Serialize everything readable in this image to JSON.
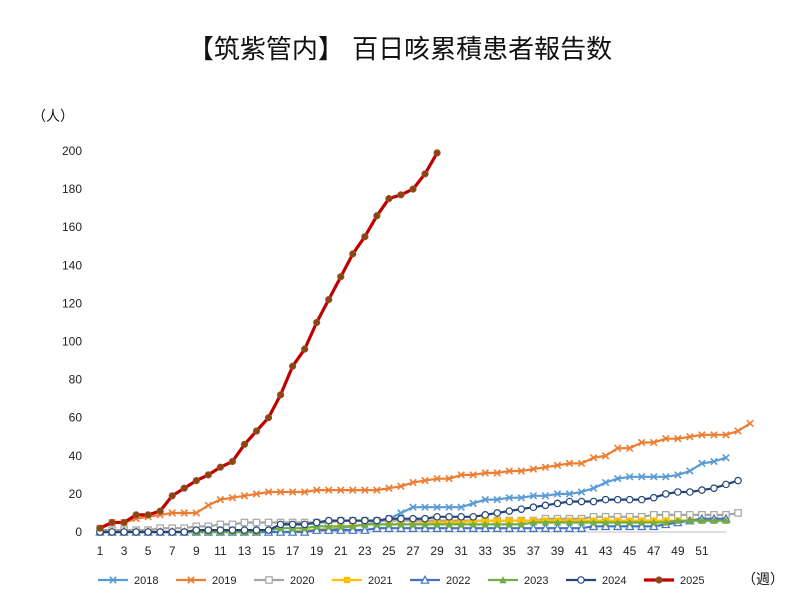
{
  "chart_data": {
    "type": "line",
    "title": "【筑紫管内】 百日咳累積患者報告数",
    "ylabel": "（人）",
    "xlabel": "（週）",
    "ylim": [
      0,
      200
    ],
    "yticks": [
      0,
      20,
      40,
      60,
      80,
      100,
      120,
      140,
      160,
      180,
      200
    ],
    "xlim": [
      1,
      53
    ],
    "xticks": [
      1,
      3,
      5,
      7,
      9,
      11,
      13,
      15,
      17,
      19,
      21,
      23,
      25,
      27,
      29,
      31,
      33,
      35,
      37,
      39,
      41,
      43,
      45,
      47,
      49,
      51
    ],
    "legend_position": "bottom",
    "series": [
      {
        "name": "2018",
        "color": "#5b9bd5",
        "marker": "x",
        "values": [
          0,
          0,
          0,
          0,
          0,
          0,
          0,
          0,
          0,
          0,
          0,
          0,
          0,
          0,
          0,
          0,
          0,
          1,
          1,
          2,
          2,
          3,
          4,
          5,
          7,
          10,
          13,
          13,
          13,
          13,
          13,
          15,
          17,
          17,
          18,
          18,
          19,
          19,
          20,
          20,
          21,
          23,
          26,
          28,
          29,
          29,
          29,
          29,
          30,
          32,
          36,
          37,
          39
        ]
      },
      {
        "name": "2019",
        "color": "#ed7d31",
        "marker": "x",
        "values": [
          2,
          5,
          5,
          7,
          8,
          9,
          10,
          10,
          10,
          14,
          17,
          18,
          19,
          20,
          21,
          21,
          21,
          21,
          22,
          22,
          22,
          22,
          22,
          22,
          23,
          24,
          26,
          27,
          28,
          28,
          30,
          30,
          31,
          31,
          32,
          32,
          33,
          34,
          35,
          36,
          36,
          39,
          40,
          44,
          44,
          47,
          47,
          49,
          49,
          50,
          51,
          51,
          51,
          53,
          57
        ]
      },
      {
        "name": "2020",
        "color": "#a5a5a5",
        "marker": "square-open",
        "values": [
          1,
          1,
          1,
          1,
          1,
          2,
          2,
          2,
          3,
          3,
          4,
          4,
          5,
          5,
          5,
          5,
          5,
          5,
          5,
          5,
          6,
          6,
          6,
          6,
          6,
          6,
          6,
          6,
          6,
          6,
          6,
          6,
          6,
          6,
          6,
          6,
          6,
          7,
          7,
          7,
          7,
          8,
          8,
          8,
          8,
          8,
          9,
          9,
          9,
          9,
          9,
          9,
          9,
          10
        ]
      },
      {
        "name": "2021",
        "color": "#ffc000",
        "marker": "square",
        "values": [
          0,
          0,
          0,
          0,
          0,
          0,
          0,
          0,
          0,
          0,
          0,
          0,
          0,
          0,
          0,
          0,
          0,
          1,
          1,
          2,
          3,
          3,
          4,
          4,
          4,
          4,
          4,
          5,
          5,
          5,
          5,
          6,
          6,
          6,
          6,
          6,
          6,
          6,
          6,
          6,
          6,
          6,
          6,
          6,
          6,
          6,
          6,
          6,
          6,
          6,
          6,
          6,
          6
        ]
      },
      {
        "name": "2022",
        "color": "#4472c4",
        "marker": "triangle-open",
        "values": [
          0,
          0,
          0,
          0,
          0,
          0,
          0,
          0,
          0,
          0,
          0,
          0,
          0,
          0,
          0,
          0,
          0,
          0,
          1,
          1,
          1,
          1,
          1,
          2,
          2,
          2,
          2,
          2,
          2,
          2,
          2,
          2,
          2,
          2,
          2,
          2,
          2,
          2,
          2,
          2,
          2,
          3,
          3,
          3,
          3,
          3,
          3,
          4,
          5,
          6,
          7,
          7,
          7
        ]
      },
      {
        "name": "2023",
        "color": "#70ad47",
        "marker": "triangle",
        "values": [
          0,
          0,
          0,
          0,
          0,
          0,
          0,
          0,
          0,
          0,
          0,
          0,
          0,
          0,
          1,
          2,
          2,
          2,
          3,
          3,
          3,
          3,
          4,
          4,
          4,
          4,
          4,
          4,
          4,
          4,
          4,
          4,
          4,
          4,
          4,
          4,
          5,
          5,
          5,
          5,
          5,
          5,
          5,
          5,
          5,
          5,
          5,
          5,
          6,
          6,
          6,
          6,
          6
        ]
      },
      {
        "name": "2024",
        "color": "#264478",
        "marker": "circle-open",
        "values": [
          0,
          0,
          0,
          0,
          0,
          0,
          0,
          0,
          1,
          1,
          1,
          1,
          1,
          1,
          1,
          4,
          4,
          4,
          5,
          6,
          6,
          6,
          6,
          6,
          7,
          7,
          7,
          7,
          8,
          8,
          8,
          8,
          9,
          10,
          11,
          12,
          13,
          14,
          15,
          16,
          16,
          16,
          17,
          17,
          17,
          17,
          18,
          20,
          21,
          21,
          22,
          23,
          25,
          27
        ]
      },
      {
        "name": "2025",
        "color": "#c00000",
        "marker": "circle",
        "values": [
          2,
          5,
          5,
          9,
          9,
          11,
          19,
          23,
          27,
          30,
          34,
          37,
          46,
          53,
          60,
          72,
          87,
          96,
          110,
          122,
          134,
          146,
          155,
          166,
          175,
          177,
          180,
          188,
          199
        ]
      }
    ]
  }
}
